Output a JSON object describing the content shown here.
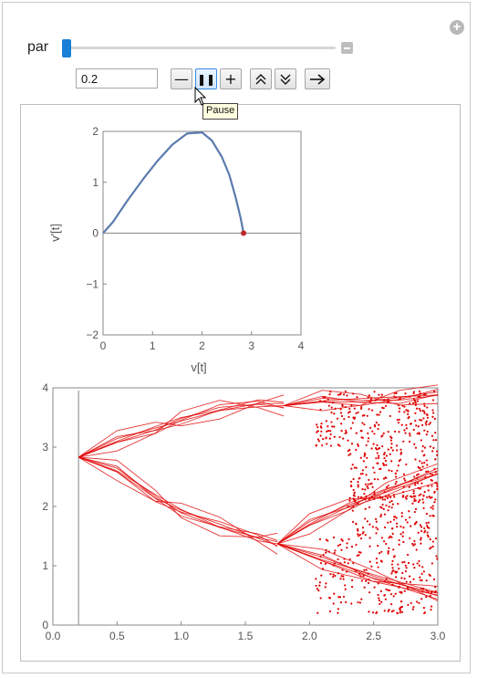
{
  "controls": {
    "add_icon": "plus-circle-icon",
    "parameter_label": "par",
    "parameter_value": "0.2",
    "slider_fraction": 0.0,
    "buttons": [
      {
        "name": "decrement-button",
        "glyph": "—"
      },
      {
        "name": "pause-button",
        "glyph": "❚❚"
      },
      {
        "name": "increment-button",
        "glyph": "+"
      },
      {
        "name": "faster-button",
        "glyph": "⌃⌃"
      },
      {
        "name": "slower-button",
        "glyph": "⌄⌄"
      },
      {
        "name": "direction-button",
        "glyph": "→"
      }
    ],
    "tooltip": "Pause"
  },
  "chart_data": [
    {
      "type": "line",
      "title": "",
      "xlabel": "v[t]",
      "ylabel": "v'[t]",
      "xlim": [
        0,
        4
      ],
      "ylim": [
        -2,
        2
      ],
      "xticks": [
        "0",
        "1",
        "2",
        "3",
        "4"
      ],
      "yticks": [
        "−2",
        "−1",
        "0",
        "1",
        "2"
      ],
      "grid": false,
      "color": "#5a7bae",
      "x": [
        0,
        0.2,
        0.5,
        0.8,
        1.1,
        1.4,
        1.7,
        2.0,
        2.2,
        2.4,
        2.55,
        2.68,
        2.78,
        2.84
      ],
      "y": [
        0,
        0.22,
        0.65,
        1.05,
        1.42,
        1.74,
        1.96,
        1.98,
        1.82,
        1.5,
        1.15,
        0.7,
        0.3,
        0
      ],
      "point": {
        "x": 2.84,
        "y": 0,
        "color": "#c0262c"
      }
    },
    {
      "type": "scatter",
      "title": "",
      "xlabel": "",
      "ylabel": "",
      "xlim": [
        0,
        3
      ],
      "ylim": [
        0,
        4
      ],
      "xticks": [
        "0.0",
        "0.5",
        "1.0",
        "1.5",
        "2.0",
        "2.5",
        "3.0"
      ],
      "yticks": [
        "0",
        "1",
        "2",
        "3",
        "4"
      ],
      "grid": false,
      "color": "#e00000",
      "marker_x": 0.2,
      "branches": [
        {
          "x": [
            0.2,
            0.5,
            0.8,
            1.0,
            1.3,
            1.6,
            1.8
          ],
          "y": [
            2.83,
            3.1,
            3.35,
            3.5,
            3.62,
            3.68,
            3.7
          ]
        },
        {
          "x": [
            0.2,
            0.5,
            0.8,
            1.0,
            1.3,
            1.6,
            1.75
          ],
          "y": [
            2.83,
            2.6,
            2.2,
            1.95,
            1.65,
            1.42,
            1.37
          ]
        },
        {
          "x": [
            1.8,
            2.1,
            2.4,
            2.7,
            3.0
          ],
          "y": [
            3.7,
            3.78,
            3.82,
            3.85,
            3.88
          ]
        },
        {
          "x": [
            1.75,
            2.1,
            2.5,
            3.0
          ],
          "y": [
            1.37,
            1.1,
            0.85,
            0.55
          ]
        },
        {
          "x": [
            1.75,
            2.0,
            2.3,
            2.6,
            3.0
          ],
          "y": [
            1.37,
            1.7,
            2.05,
            2.3,
            2.55
          ]
        }
      ]
    }
  ]
}
